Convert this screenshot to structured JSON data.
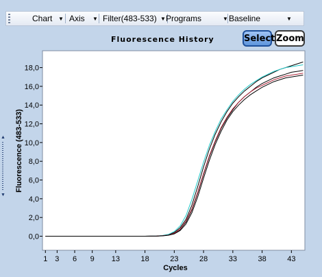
{
  "toolbar": {
    "items": [
      {
        "label": "Chart"
      },
      {
        "label": "Axis"
      },
      {
        "label": "Filter(483-533)"
      },
      {
        "label": "Programs"
      },
      {
        "label": "Baseline"
      }
    ]
  },
  "buttons": {
    "select_label": "Select",
    "zoom_label": "Zoom"
  },
  "colors": {
    "background": "#c3d5ea",
    "select_button": "#6aa0e2",
    "plot_background": "#ffffff"
  },
  "chart_data": {
    "type": "line",
    "title": "Fluorescence History",
    "xlabel": "Cycles",
    "ylabel": "Fluorescence (483-533)",
    "xlim": [
      1,
      45
    ],
    "ylim": [
      -1.5,
      19.8
    ],
    "xticks": [
      1,
      3,
      6,
      9,
      13,
      18,
      23,
      28,
      33,
      38,
      43
    ],
    "yticks": [
      0,
      2,
      4,
      6,
      8,
      10,
      12,
      14,
      16,
      18
    ],
    "ytick_labels": [
      "0,0",
      "2,0",
      "4,0",
      "6,0",
      "8,0",
      "10,0",
      "12,0",
      "14,0",
      "16,0",
      "18,0"
    ],
    "grid": false,
    "legend": "none",
    "series": [
      {
        "color": "#000000",
        "x": [
          1,
          18,
          20,
          21,
          22,
          23,
          24,
          25,
          26,
          27,
          28,
          29,
          30,
          31,
          32,
          33,
          34,
          35,
          36,
          37,
          38,
          39,
          40,
          41,
          42,
          43,
          44,
          45
        ],
        "values": [
          0,
          0,
          0.02,
          0.06,
          0.15,
          0.4,
          0.9,
          1.8,
          3.3,
          5.3,
          7.4,
          9.3,
          10.9,
          12.2,
          13.3,
          14.2,
          14.9,
          15.5,
          16.0,
          16.5,
          16.9,
          17.2,
          17.5,
          17.8,
          18.0,
          18.2,
          18.4,
          18.6
        ]
      },
      {
        "color": "#1fc9c9",
        "x": [
          1,
          18,
          20,
          21,
          22,
          23,
          24,
          25,
          26,
          27,
          28,
          29,
          30,
          31,
          32,
          33,
          34,
          35,
          36,
          37,
          38,
          39,
          40,
          41,
          42,
          43,
          44,
          45
        ],
        "values": [
          0,
          0,
          0.03,
          0.08,
          0.2,
          0.5,
          1.1,
          2.2,
          3.9,
          5.9,
          7.9,
          9.7,
          11.2,
          12.5,
          13.5,
          14.4,
          15.1,
          15.7,
          16.2,
          16.6,
          17.0,
          17.3,
          17.6,
          17.8,
          18.0,
          18.1,
          18.2,
          18.3
        ]
      },
      {
        "color": "#000000",
        "x": [
          1,
          18,
          20,
          21,
          22,
          23,
          24,
          25,
          26,
          27,
          28,
          29,
          30,
          31,
          32,
          33,
          34,
          35,
          36,
          37,
          38,
          39,
          40,
          41,
          42,
          43,
          44,
          45
        ],
        "values": [
          0,
          0,
          0.02,
          0.05,
          0.12,
          0.3,
          0.7,
          1.5,
          2.8,
          4.6,
          6.6,
          8.5,
          10.1,
          11.5,
          12.6,
          13.5,
          14.3,
          14.9,
          15.4,
          15.9,
          16.3,
          16.6,
          16.9,
          17.1,
          17.3,
          17.5,
          17.6,
          17.7
        ]
      },
      {
        "color": "#b0283c",
        "x": [
          1,
          18,
          20,
          21,
          22,
          23,
          24,
          25,
          26,
          27,
          28,
          29,
          30,
          31,
          32,
          33,
          34,
          35,
          36,
          37,
          38,
          39,
          40,
          41,
          42,
          43,
          44,
          45
        ],
        "values": [
          0,
          0,
          0.02,
          0.05,
          0.12,
          0.32,
          0.75,
          1.6,
          2.9,
          4.7,
          6.7,
          8.6,
          10.2,
          11.6,
          12.7,
          13.6,
          14.3,
          14.9,
          15.4,
          15.8,
          16.1,
          16.4,
          16.7,
          16.9,
          17.1,
          17.2,
          17.3,
          17.4
        ]
      },
      {
        "color": "#000000",
        "x": [
          1,
          18,
          20,
          21,
          22,
          23,
          24,
          25,
          26,
          27,
          28,
          29,
          30,
          31,
          32,
          33,
          34,
          35,
          36,
          37,
          38,
          39,
          40,
          41,
          42,
          43,
          44,
          45
        ],
        "values": [
          0,
          0,
          0.01,
          0.04,
          0.1,
          0.25,
          0.6,
          1.3,
          2.5,
          4.2,
          6.2,
          8.1,
          9.8,
          11.2,
          12.4,
          13.3,
          14.0,
          14.6,
          15.1,
          15.5,
          15.9,
          16.2,
          16.5,
          16.7,
          16.9,
          17.0,
          17.1,
          17.2
        ]
      }
    ]
  }
}
